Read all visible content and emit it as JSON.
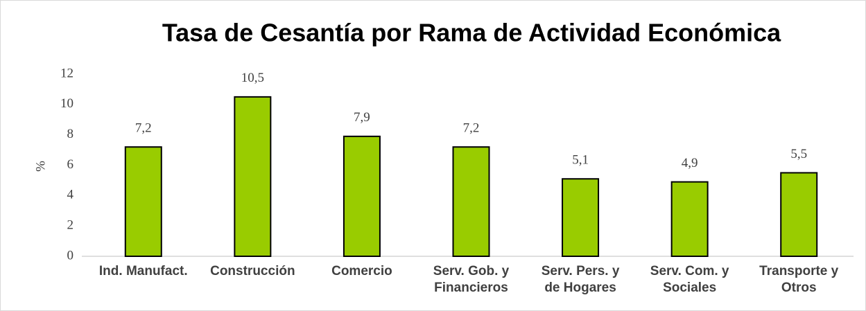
{
  "chart_data": {
    "type": "bar",
    "title": "Tasa de Cesantía por Rama de Actividad Económica",
    "y_label": "%",
    "categories": [
      "Ind. Manufact.",
      "Construcción",
      "Comercio",
      "Serv. Gob. y Financieros",
      "Serv. Pers. y de Hogares",
      "Serv. Com. y Sociales",
      "Transporte y Otros"
    ],
    "values": [
      7.2,
      10.5,
      7.9,
      7.2,
      5.1,
      4.9,
      5.5
    ],
    "value_labels": [
      "7,2",
      "10,5",
      "7,9",
      "7,2",
      "5,1",
      "4,9",
      "5,5"
    ],
    "color": "#99cc00",
    "ylim": [
      0,
      12
    ],
    "yticks": [
      0,
      2,
      4,
      6,
      8,
      10,
      12
    ],
    "grid": false
  }
}
